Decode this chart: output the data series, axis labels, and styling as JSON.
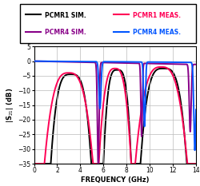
{
  "xlabel": "FREQUENCY (GHz)",
  "ylabel": "|S$_{21}$| (dB)",
  "xlim": [
    0,
    14
  ],
  "ylim": [
    -35,
    5
  ],
  "xticks": [
    0,
    2,
    4,
    6,
    8,
    10,
    12,
    14
  ],
  "yticks": [
    5,
    0,
    -5,
    -10,
    -15,
    -20,
    -25,
    -30,
    -35
  ],
  "colors": {
    "pcmr1_sim": "#000000",
    "pcmr1_meas": "#ff0055",
    "pcmr4_sim": "#880088",
    "pcmr4_meas": "#0055ff"
  },
  "legend": {
    "pcmr1_sim": "PCMR1 SIM.",
    "pcmr1_meas": "PCMR1 MEAS.",
    "pcmr4_sim": "PCMR4 SIM.",
    "pcmr4_meas": "PCMR4 MEAS."
  },
  "background": "#ffffff",
  "grid_color": "#bbbbbb"
}
